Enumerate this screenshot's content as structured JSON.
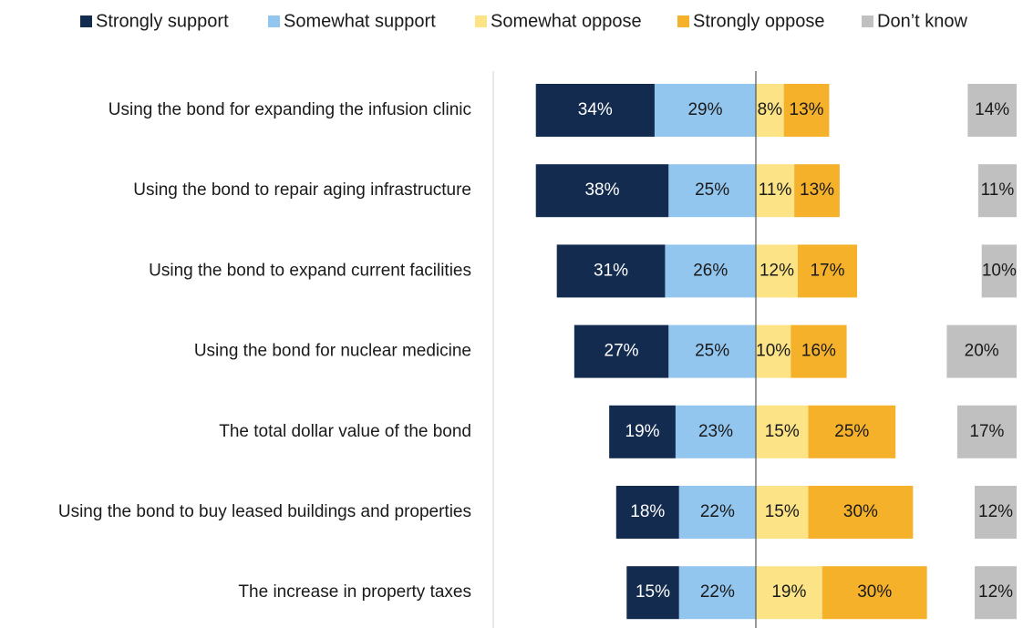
{
  "chart_data": {
    "type": "diverging_bar",
    "categories": [
      "Using the bond for expanding the infusion clinic",
      "Using the bond to repair aging infrastructure",
      "Using the bond to expand current facilities",
      "Using the bond for nuclear medicine",
      "The total dollar value of the bond",
      "Using the bond to buy leased buildings and properties",
      "The increase in property taxes"
    ],
    "series": [
      {
        "name": "Strongly support",
        "color": "#142b50",
        "values": [
          34,
          38,
          31,
          27,
          19,
          18,
          15
        ],
        "value_labels": [
          "34%",
          "38%",
          "31%",
          "27%",
          "19%",
          "18%",
          "15%"
        ]
      },
      {
        "name": "Somewhat support",
        "color": "#92c6ef",
        "values": [
          29,
          25,
          26,
          25,
          23,
          22,
          22
        ],
        "value_labels": [
          "29%",
          "25%",
          "26%",
          "25%",
          "23%",
          "22%",
          "22%"
        ]
      },
      {
        "name": "Somewhat oppose",
        "color": "#fbe386",
        "values": [
          8,
          11,
          12,
          10,
          15,
          15,
          19
        ],
        "value_labels": [
          "8%",
          "11%",
          "12%",
          "10%",
          "15%",
          "15%",
          "19%"
        ]
      },
      {
        "name": "Strongly oppose",
        "color": "#f6b12a",
        "values": [
          13,
          13,
          17,
          16,
          25,
          30,
          30
        ],
        "value_labels": [
          "13%",
          "13%",
          "17%",
          "16%",
          "25%",
          "30%",
          "30%"
        ]
      },
      {
        "name": "Don’t know",
        "color": "#c0c0c0",
        "values": [
          14,
          11,
          10,
          20,
          17,
          12,
          12
        ],
        "value_labels": [
          "14%",
          "11%",
          "10%",
          "20%",
          "17%",
          "12%",
          "12%"
        ]
      }
    ]
  }
}
